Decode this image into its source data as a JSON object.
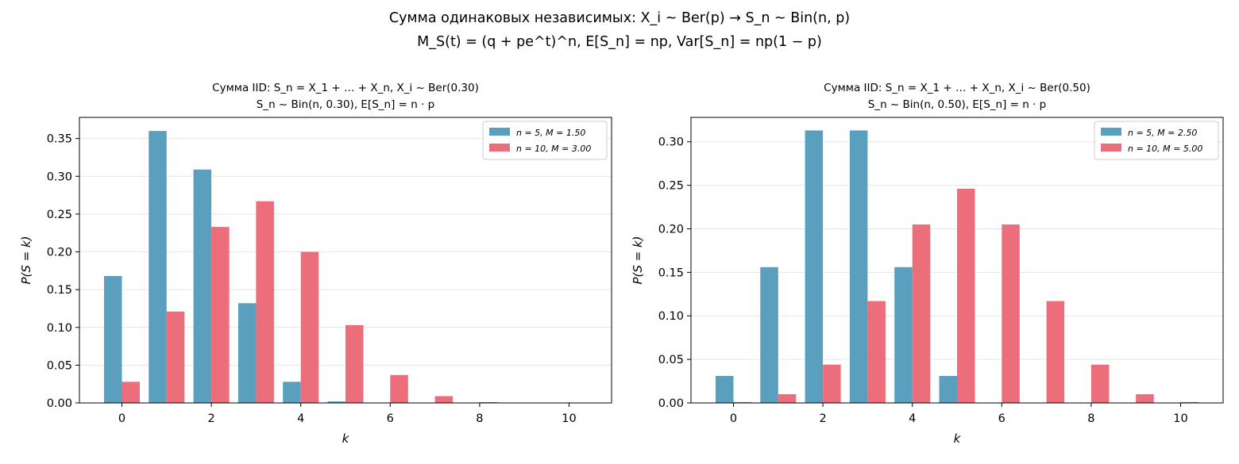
{
  "suptitle": {
    "line1": "Сумма одинаковых независимых: X_i ~ Ber(p) → S_n ~ Bin(n, p)",
    "line2": "M_S(t) = (q + pe^t)^n,  E[S_n] = np,  Var[S_n] = np(1 − p)"
  },
  "colors": {
    "series1": "#5a9fbe",
    "series2": "#ec6e7a",
    "grid": "#e6e6e6"
  },
  "chart_data": [
    {
      "type": "bar",
      "title": "Сумма IID: S_n = X_1 + … + X_n,  X_i ~ Ber(0.30)",
      "subtitle": "S_n ~ Bin(n, 0.30),  E[S_n] = n · p",
      "xlabel": "k",
      "ylabel": "P(S = k)",
      "xlim": [
        -0.95,
        10.95
      ],
      "ylim": [
        0,
        0.378
      ],
      "xticks": [
        0,
        2,
        4,
        6,
        8,
        10
      ],
      "yticks": [
        0.0,
        0.05,
        0.1,
        0.15,
        0.2,
        0.25,
        0.3,
        0.35
      ],
      "ytick_labels": [
        "0.00",
        "0.05",
        "0.10",
        "0.15",
        "0.20",
        "0.25",
        "0.30",
        "0.35"
      ],
      "grid": "y",
      "legend_position": "top-right",
      "categories": [
        0,
        1,
        2,
        3,
        4,
        5,
        6,
        7,
        8,
        9,
        10
      ],
      "series": [
        {
          "name": "n = 5, M = 1.50",
          "values": [
            0.168,
            0.36,
            0.309,
            0.132,
            0.028,
            0.002,
            0,
            0,
            0,
            0,
            0
          ]
        },
        {
          "name": "n = 10, M = 3.00",
          "values": [
            0.028,
            0.121,
            0.233,
            0.267,
            0.2,
            0.103,
            0.037,
            0.009,
            0.001,
            0.0001,
            0.0
          ]
        }
      ]
    },
    {
      "type": "bar",
      "title": "Сумма IID: S_n = X_1 + … + X_n,  X_i ~ Ber(0.50)",
      "subtitle": "S_n ~ Bin(n, 0.50),  E[S_n] = n · p",
      "xlabel": "k",
      "ylabel": "P(S = k)",
      "xlim": [
        -0.95,
        10.95
      ],
      "ylim": [
        0,
        0.328
      ],
      "xticks": [
        0,
        2,
        4,
        6,
        8,
        10
      ],
      "yticks": [
        0.0,
        0.05,
        0.1,
        0.15,
        0.2,
        0.25,
        0.3
      ],
      "ytick_labels": [
        "0.00",
        "0.05",
        "0.10",
        "0.15",
        "0.20",
        "0.25",
        "0.30"
      ],
      "grid": "y",
      "legend_position": "top-right",
      "categories": [
        0,
        1,
        2,
        3,
        4,
        5,
        6,
        7,
        8,
        9,
        10
      ],
      "series": [
        {
          "name": "n = 5, M = 2.50",
          "values": [
            0.031,
            0.156,
            0.313,
            0.313,
            0.156,
            0.031,
            0,
            0,
            0,
            0,
            0
          ]
        },
        {
          "name": "n = 10, M = 5.00",
          "values": [
            0.001,
            0.01,
            0.044,
            0.117,
            0.205,
            0.246,
            0.205,
            0.117,
            0.044,
            0.01,
            0.001
          ]
        }
      ]
    }
  ]
}
